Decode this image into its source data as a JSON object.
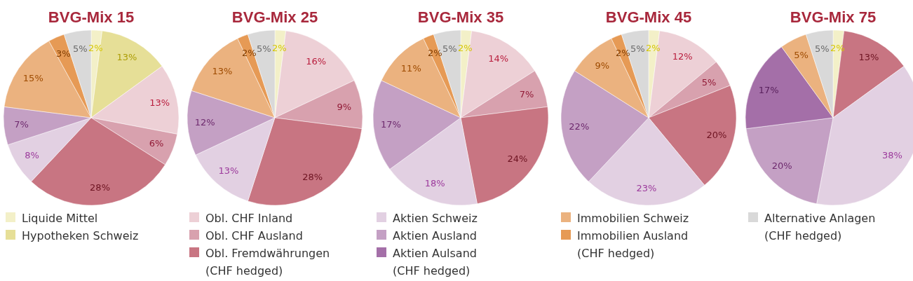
{
  "chart_data": [
    {
      "type": "pie",
      "title": "BVG-Mix 15",
      "legend": "bottom",
      "categories": [
        "Liquide Mittel",
        "Hypotheken Schweiz",
        "Obl. CHF Inland",
        "Obl. CHF Ausland",
        "Obl. Fremdwährungen (CHF hedged)",
        "Aktien Schweiz",
        "Aktien Ausland",
        "Aktien Aulsand (CHF hedged)",
        "Immobilien Schweiz",
        "Immobilien Ausland (CHF hedged)",
        "Alternative Anlagen (CHF hedged)"
      ],
      "values": [
        2,
        13,
        13,
        6,
        28,
        8,
        7,
        null,
        15,
        3,
        5
      ],
      "value_labels": [
        "2%",
        "13%",
        "13%",
        "6%",
        "28%",
        "8%",
        "7%",
        null,
        "15%",
        "3%",
        "5%"
      ],
      "colors": [
        "#f3f0c8",
        "#e6df97",
        "#edd0d6",
        "#d8a1ae",
        "#c87582",
        "#e2d0e2",
        "#c4a0c4",
        "#a46fa8",
        "#ebb27f",
        "#e69a55",
        "#d9d9d9"
      ]
    },
    {
      "type": "pie",
      "title": "BVG-Mix 25",
      "categories": [
        null,
        null,
        null,
        null,
        null,
        null,
        null,
        null,
        null
      ],
      "values": [
        2,
        16,
        9,
        28,
        13,
        12,
        13,
        2,
        5
      ],
      "value_labels": [
        "2%",
        "16%",
        "9%",
        "28%",
        "13%",
        "12%",
        "13%",
        "2%",
        "5%"
      ],
      "colors": [
        "#f3f0c8",
        "#edd0d6",
        "#d8a1ae",
        "#c87582",
        "#e2d0e2",
        "#c4a0c4",
        "#ebb27f",
        "#e69a55",
        "#d9d9d9"
      ]
    },
    {
      "type": "pie",
      "title": "BVG-Mix 35",
      "categories": [
        null,
        null,
        null,
        null,
        null,
        null,
        null,
        null,
        null
      ],
      "values": [
        2,
        14,
        7,
        24,
        18,
        17,
        11,
        2,
        5
      ],
      "value_labels": [
        "2%",
        "14%",
        "7%",
        "24%",
        "18%",
        "17%",
        "11%",
        "2%",
        "5%"
      ],
      "colors": [
        "#f3f0c8",
        "#edd0d6",
        "#d8a1ae",
        "#c87582",
        "#e2d0e2",
        "#c4a0c4",
        "#ebb27f",
        "#e69a55",
        "#d9d9d9"
      ]
    },
    {
      "type": "pie",
      "title": "BVG-Mix 45",
      "categories": [
        null,
        null,
        null,
        null,
        null,
        null,
        null,
        null,
        null
      ],
      "values": [
        2,
        12,
        5,
        20,
        23,
        22,
        9,
        2,
        5
      ],
      "value_labels": [
        "2%",
        "12%",
        "5%",
        "20%",
        "23%",
        "22%",
        "9%",
        "2%",
        "5%"
      ],
      "colors": [
        "#f3f0c8",
        "#edd0d6",
        "#d8a1ae",
        "#c87582",
        "#e2d0e2",
        "#c4a0c4",
        "#ebb27f",
        "#e69a55",
        "#d9d9d9"
      ]
    },
    {
      "type": "pie",
      "title": "BVG-Mix 75",
      "categories": [
        null,
        null,
        null,
        null,
        null,
        null,
        null
      ],
      "values": [
        2,
        13,
        38,
        20,
        17,
        5,
        5
      ],
      "value_labels": [
        "2%",
        "13%",
        "38%",
        "20%",
        "17%",
        "5%",
        "5%"
      ],
      "colors": [
        "#f3f0c8",
        "#c87582",
        "#e2d0e2",
        "#c4a0c4",
        "#a46fa8",
        "#ebb27f",
        "#d9d9d9"
      ]
    }
  ]
}
